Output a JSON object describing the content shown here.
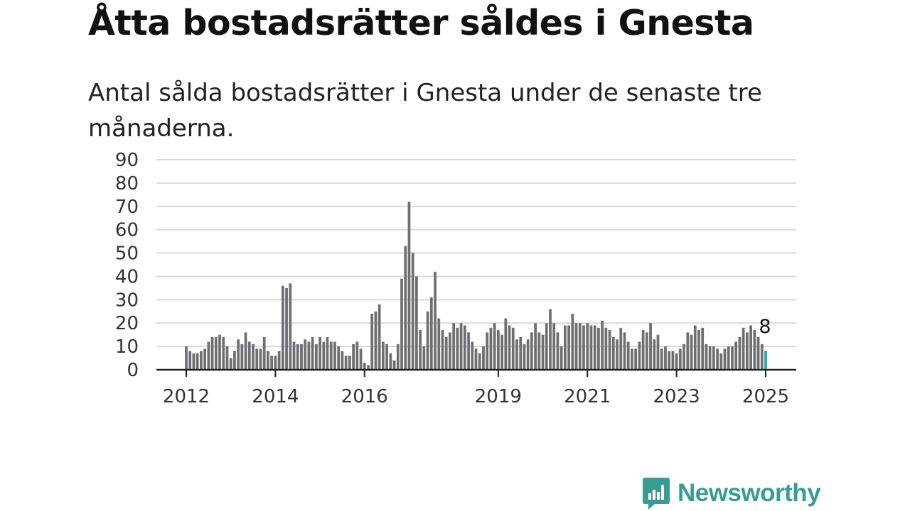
{
  "title": "Åtta bostadsrätter såldes i Gnesta",
  "subtitle": "Antal sålda bostadsrätter i Gnesta under de senaste tre månaderna.",
  "logo": {
    "text": "Newsworthy",
    "icon": "newsworthy-logo-icon"
  },
  "colors": {
    "bar": "#6f6e72",
    "highlight": "#27a99a",
    "grid": "#d9d9d9",
    "axis": "#222222",
    "logo": "#3a9b92"
  },
  "chart_data": {
    "type": "bar",
    "x_start": "2012-01",
    "x_end": "2025-01",
    "values": [
      10,
      8,
      7,
      7,
      8,
      9,
      12,
      14,
      14,
      15,
      14,
      10,
      5,
      8,
      13,
      11,
      16,
      12,
      11,
      9,
      9,
      14,
      8,
      6,
      6,
      8,
      36,
      35,
      37,
      12,
      11,
      11,
      13,
      12,
      14,
      11,
      14,
      12,
      14,
      12,
      12,
      10,
      8,
      6,
      6,
      11,
      12,
      9,
      3,
      2,
      24,
      25,
      28,
      12,
      11,
      7,
      4,
      11,
      39,
      53,
      72,
      50,
      40,
      17,
      10,
      25,
      31,
      42,
      22,
      17,
      14,
      16,
      20,
      18,
      20,
      19,
      16,
      12,
      9,
      7,
      10,
      16,
      18,
      20,
      17,
      15,
      22,
      19,
      18,
      13,
      14,
      11,
      13,
      16,
      20,
      16,
      15,
      20,
      26,
      20,
      16,
      10,
      19,
      19,
      24,
      20,
      20,
      19,
      20,
      19,
      19,
      18,
      21,
      18,
      17,
      14,
      13,
      18,
      16,
      12,
      9,
      9,
      12,
      17,
      16,
      20,
      13,
      15,
      9,
      10,
      8,
      8,
      7,
      9,
      11,
      16,
      15,
      19,
      17,
      18,
      11,
      10,
      10,
      9,
      7,
      9,
      10,
      10,
      12,
      14,
      18,
      16,
      19,
      17,
      14,
      11,
      8
    ],
    "highlight_last": true,
    "annotation": "8",
    "ylim": [
      0,
      90
    ],
    "yticks": [
      "0",
      "10",
      "20",
      "30",
      "40",
      "50",
      "60",
      "70",
      "80",
      "90"
    ],
    "xticks": [
      {
        "label": "2012",
        "date": "2012-01"
      },
      {
        "label": "2014",
        "date": "2014-01"
      },
      {
        "label": "2016",
        "date": "2016-01"
      },
      {
        "label": "2019",
        "date": "2019-01"
      },
      {
        "label": "2021",
        "date": "2021-01"
      },
      {
        "label": "2023",
        "date": "2023-01"
      },
      {
        "label": "2025",
        "date": "2025-01"
      }
    ],
    "grid": true,
    "xlabel": "",
    "ylabel": ""
  }
}
